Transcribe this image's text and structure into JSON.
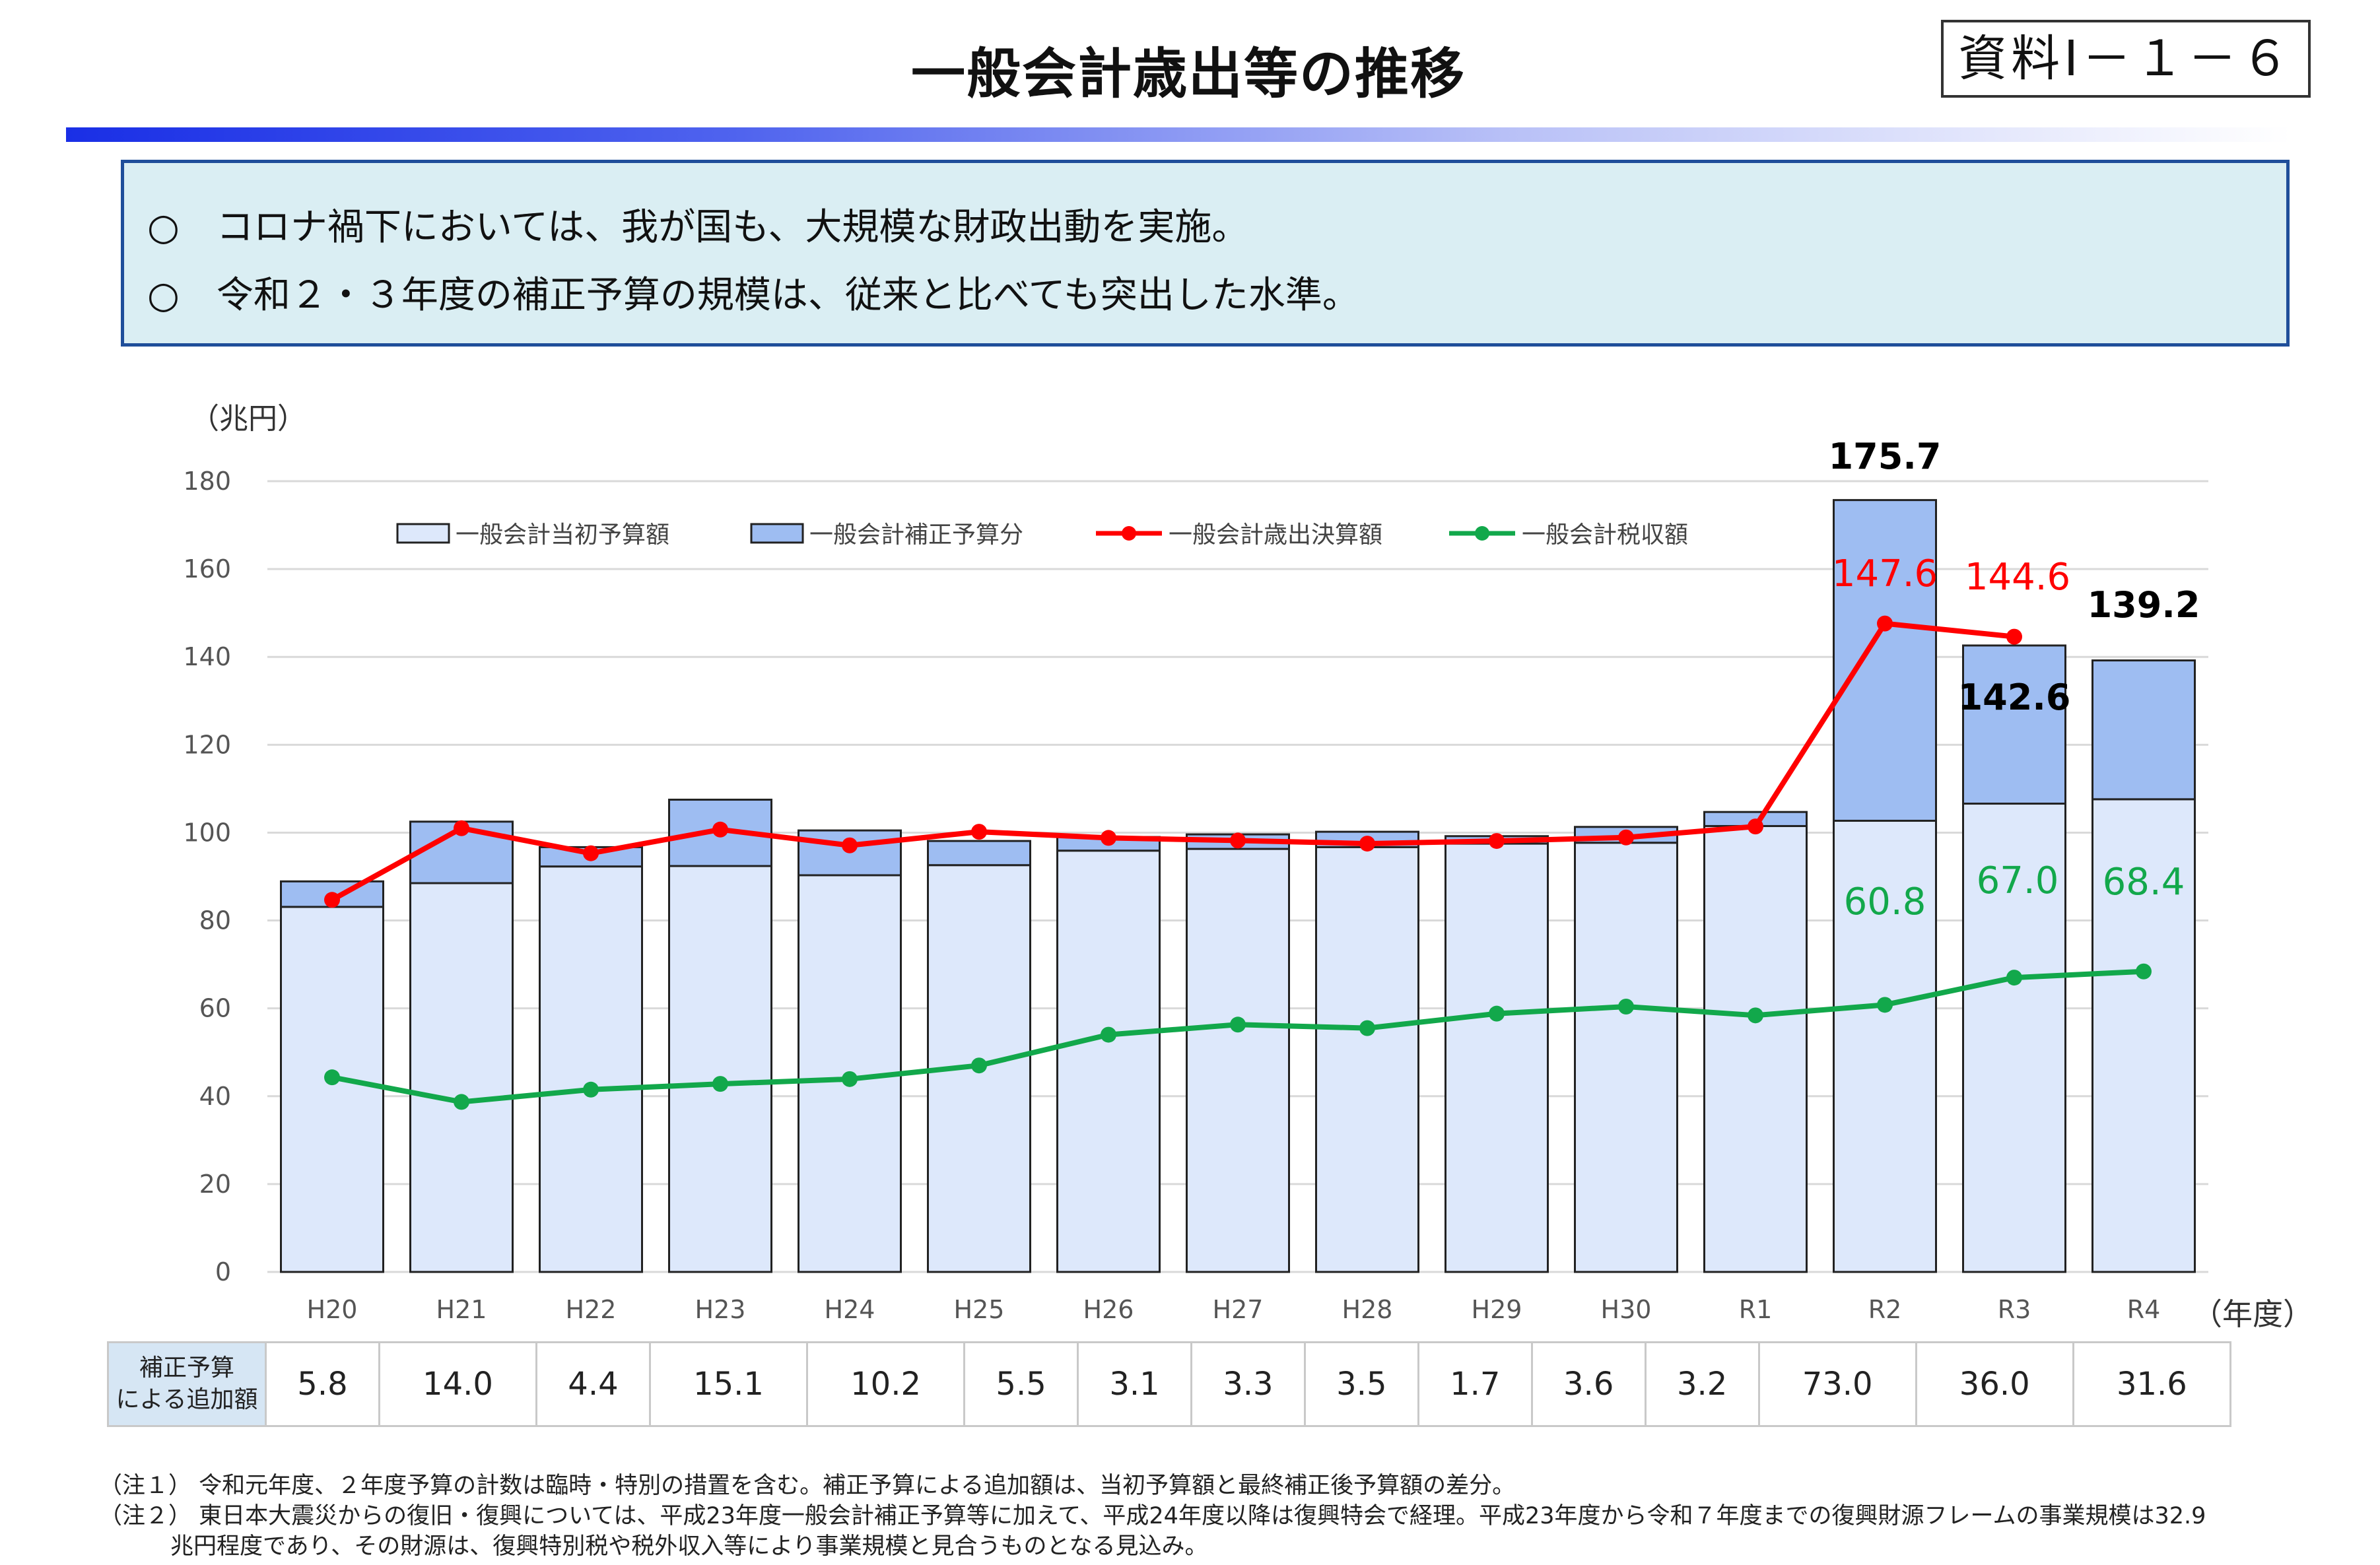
{
  "header": {
    "title": "一般会計歳出等の推移",
    "ref": "資料Ⅰ－１－６"
  },
  "summary": {
    "line1": "○　コロナ禍下においては、我が国も、大規模な財政出動を実施。",
    "line2": "○　令和２・３年度の補正予算の規模は、従来と比べても突出した水準。"
  },
  "chart_data": {
    "type": "bar",
    "unit_label": "（兆円）",
    "x_axis_label": "（年度）",
    "categories": [
      "H20",
      "H21",
      "H22",
      "H23",
      "H24",
      "H25",
      "H26",
      "H27",
      "H28",
      "H29",
      "H30",
      "R1",
      "R2",
      "R3",
      "R4"
    ],
    "ylim": [
      0,
      180
    ],
    "yticks": [
      0,
      20,
      40,
      60,
      80,
      100,
      120,
      140,
      160,
      180
    ],
    "grid": true,
    "legend_position": "top",
    "stacked": true,
    "series": [
      {
        "name": "一般会計当初予算額",
        "kind": "bar",
        "color": "#dde8fb",
        "values": [
          83.1,
          88.5,
          92.3,
          92.4,
          90.3,
          92.6,
          95.9,
          96.3,
          96.7,
          97.5,
          97.7,
          101.5,
          102.7,
          106.6,
          107.6
        ]
      },
      {
        "name": "一般会計補正予算分",
        "kind": "bar",
        "color": "#9ebdf2",
        "values": [
          5.8,
          14.0,
          4.4,
          15.1,
          10.2,
          5.5,
          3.1,
          3.3,
          3.5,
          1.7,
          3.6,
          3.2,
          73.0,
          36.0,
          31.6
        ]
      },
      {
        "name": "一般会計歳出決算額",
        "kind": "line",
        "color": "#ff0000",
        "values": [
          84.7,
          101.0,
          95.3,
          100.7,
          97.1,
          100.2,
          98.8,
          98.2,
          97.5,
          98.1,
          98.9,
          101.4,
          147.6,
          144.6,
          null
        ]
      },
      {
        "name": "一般会計税収額",
        "kind": "line",
        "color": "#12a84b",
        "values": [
          44.3,
          38.7,
          41.5,
          42.8,
          43.9,
          47.0,
          54.0,
          56.3,
          55.5,
          58.8,
          60.4,
          58.4,
          60.8,
          67.0,
          68.4
        ]
      }
    ],
    "annotations": [
      {
        "text": "175.7",
        "category": "R2",
        "value": 175.7,
        "color": "#000000"
      },
      {
        "text": "142.6",
        "category": "R3",
        "value": 142.6,
        "color": "#000000"
      },
      {
        "text": "139.2",
        "category": "R4",
        "value": 139.2,
        "color": "#000000"
      },
      {
        "text": "147.6",
        "category": "R2",
        "value": 147.6,
        "color": "#ff0000"
      },
      {
        "text": "144.6",
        "category": "R3",
        "value": 144.6,
        "color": "#ff0000"
      },
      {
        "text": "60.8",
        "category": "R2",
        "value": 60.8,
        "color": "#12a84b"
      },
      {
        "text": "67.0",
        "category": "R3",
        "value": 67.0,
        "color": "#12a84b"
      },
      {
        "text": "68.4",
        "category": "R4",
        "value": 68.4,
        "color": "#12a84b"
      }
    ]
  },
  "additions_table": {
    "row_label_line1": "補正予算",
    "row_label_line2": "による追加額",
    "values": [
      "5.8",
      "14.0",
      "4.4",
      "15.1",
      "10.2",
      "5.5",
      "3.1",
      "3.3",
      "3.5",
      "1.7",
      "3.6",
      "3.2",
      "73.0",
      "36.0",
      "31.6"
    ]
  },
  "notes": {
    "note1": "（注１） 令和元年度、２年度予算の計数は臨時・特別の措置を含む。補正予算による追加額は、当初予算額と最終補正後予算額の差分。",
    "note2": "（注２） 東日本大震災からの復旧・復興については、平成23年度一般会計補正予算等に加えて、平成24年度以降は復興特会で経理。平成23年度から令和７年度までの復興財源フレームの事業規模は32.9",
    "note2_cont": "兆円程度であり、その財源は、復興特別税や税外収入等により事業規模と見合うものとなる見込み。"
  }
}
